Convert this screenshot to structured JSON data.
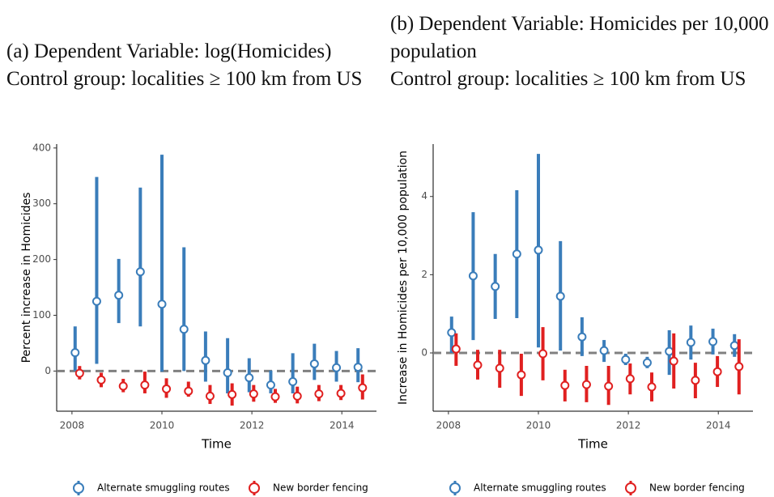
{
  "chart_data": [
    {
      "type": "errorbar",
      "title": "(a) Dependent Variable: log(Homicides)",
      "subtitle": "Control group: localities ≥ 100 km from US",
      "xlabel": "Time",
      "ylabel": "Percent increase in Homicides",
      "xlim": [
        2007.66,
        2014.77
      ],
      "ylim": [
        -72,
        407
      ],
      "xticks": [
        2008,
        2010,
        2012,
        2014
      ],
      "yticks": [
        0,
        100,
        200,
        300,
        400
      ],
      "reference_line": 0,
      "legend": "bottom",
      "series": [
        {
          "name": "Alternate smuggling routes",
          "color": "#3a7dba",
          "x": [
            2008.07,
            2008.55,
            2009.04,
            2009.52,
            2010.0,
            2010.49,
            2010.97,
            2011.46,
            2011.94,
            2012.42,
            2012.91,
            2013.39,
            2013.88,
            2014.36
          ],
          "values": [
            33,
            125,
            136,
            178,
            120,
            75,
            19,
            -3,
            -12,
            -25,
            -19,
            13,
            6,
            7
          ],
          "lower": [
            0,
            13,
            86,
            80,
            -1,
            0,
            -19,
            -40,
            -38,
            -40,
            -40,
            -16,
            -19,
            -20
          ],
          "upper": [
            80,
            348,
            201,
            329,
            388,
            222,
            71,
            59,
            23,
            1,
            32,
            49,
            36,
            41
          ]
        },
        {
          "name": "New border fencing",
          "color": "#e02020",
          "x": [
            2008.17,
            2008.65,
            2009.14,
            2009.62,
            2010.1,
            2010.59,
            2011.07,
            2011.56,
            2012.04,
            2012.52,
            2013.01,
            2013.49,
            2013.98,
            2014.46
          ],
          "values": [
            -4,
            -16,
            -27,
            -25,
            -32,
            -36,
            -45,
            -42,
            -41,
            -46,
            -45,
            -41,
            -40,
            -30
          ],
          "lower": [
            -15,
            -29,
            -38,
            -40,
            -48,
            -46,
            -59,
            -62,
            -55,
            -57,
            -58,
            -54,
            -52,
            -51
          ],
          "upper": [
            9,
            -3,
            -14,
            -1,
            -13,
            -19,
            -25,
            -22,
            -25,
            -32,
            -28,
            -25,
            -25,
            -6
          ]
        }
      ]
    },
    {
      "type": "errorbar",
      "title": "(b) Dependent Variable: Homicides per 10,000 population",
      "subtitle": "Control group: localities ≥ 100 km from US",
      "xlabel": "Time",
      "ylabel": "Increase in Homicides per 10,000 population",
      "xlim": [
        2007.66,
        2014.77
      ],
      "ylim": [
        -1.49,
        5.34
      ],
      "xticks": [
        2008,
        2010,
        2012,
        2014
      ],
      "yticks": [
        0,
        2,
        4
      ],
      "reference_line": 0,
      "legend": "bottom",
      "series": [
        {
          "name": "Alternate smuggling routes",
          "color": "#3a7dba",
          "x": [
            2008.07,
            2008.55,
            2009.04,
            2009.52,
            2010.0,
            2010.49,
            2010.97,
            2011.46,
            2011.94,
            2012.42,
            2012.91,
            2013.39,
            2013.88,
            2014.36
          ],
          "values": [
            0.52,
            1.97,
            1.7,
            2.53,
            2.63,
            1.45,
            0.41,
            0.06,
            -0.17,
            -0.25,
            0.04,
            0.27,
            0.29,
            0.19
          ],
          "lower": [
            0.0,
            0.33,
            0.87,
            0.89,
            0.14,
            0.06,
            -0.08,
            -0.23,
            -0.31,
            -0.39,
            -0.56,
            -0.17,
            -0.04,
            -0.1
          ],
          "upper": [
            0.93,
            3.6,
            2.53,
            4.16,
            5.09,
            2.86,
            0.91,
            0.33,
            -0.02,
            -0.1,
            0.58,
            0.7,
            0.62,
            0.48
          ]
        },
        {
          "name": "New border fencing",
          "color": "#e02020",
          "x": [
            2008.17,
            2008.65,
            2009.14,
            2009.62,
            2010.1,
            2010.59,
            2011.07,
            2011.56,
            2012.04,
            2012.52,
            2013.01,
            2013.49,
            2013.98,
            2014.46
          ],
          "values": [
            0.1,
            -0.31,
            -0.39,
            -0.56,
            -0.02,
            -0.83,
            -0.81,
            -0.85,
            -0.66,
            -0.87,
            -0.21,
            -0.7,
            -0.48,
            -0.35
          ],
          "lower": [
            -0.33,
            -0.68,
            -0.89,
            -1.1,
            -0.7,
            -1.24,
            -1.26,
            -1.33,
            -1.06,
            -1.24,
            -0.91,
            -1.16,
            -0.87,
            -1.06
          ],
          "upper": [
            0.5,
            0.08,
            0.08,
            -0.02,
            0.66,
            -0.43,
            -0.33,
            -0.33,
            -0.27,
            -0.5,
            0.5,
            -0.25,
            -0.08,
            0.35
          ]
        }
      ]
    }
  ]
}
